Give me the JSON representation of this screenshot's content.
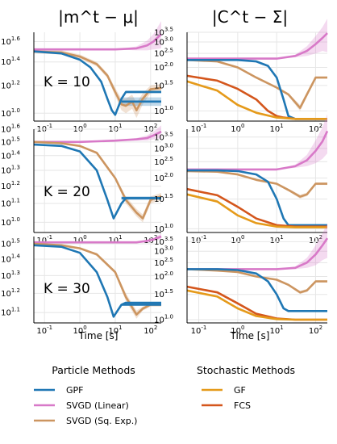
{
  "column_titles": [
    "|m^t − μ|",
    "|C^t − Σ|"
  ],
  "xlabel": "Time [s]",
  "x_ticks": [
    0.1,
    1,
    10,
    100
  ],
  "x_tick_labels": [
    "10^-1",
    "10^0",
    "10^1",
    "10^2"
  ],
  "xlim": [
    0.05,
    200
  ],
  "colors": {
    "GPF": "#1f77b4",
    "SVGD (Linear)": "#d879c8",
    "SVGD (Sq. Exp.)": "#cc9560",
    "GF": "#e59a1a",
    "FCS": "#d4561c"
  },
  "legend": {
    "particle_title": "Particle Methods",
    "particle_items": [
      "GPF",
      "SVGD (Linear)",
      "SVGD (Sq. Exp.)"
    ],
    "stochastic_title": "Stochastic Methods",
    "stochastic_items": [
      "GF",
      "FCS"
    ]
  },
  "chart_data": [
    {
      "type": "line",
      "row": 0,
      "col": 0,
      "annotation": "K = 10",
      "xscale": "log",
      "yscale": "log",
      "ylim": [
        0.95,
        1.7
      ],
      "yticks": [
        {
          "v": 1.0,
          "base": "10",
          "exp": "1.0"
        },
        {
          "v": 1.2,
          "base": "10",
          "exp": "1.2"
        },
        {
          "v": 1.4,
          "base": "10",
          "exp": "1.4"
        },
        {
          "v": 1.6,
          "base": "10",
          "exp": "1.6"
        }
      ],
      "series": [
        {
          "name": "SVGD (Linear)",
          "x": [
            0.05,
            1,
            10,
            40,
            80,
            120,
            200
          ],
          "y": [
            1.52,
            1.52,
            1.52,
            1.53,
            1.56,
            1.6,
            1.68
          ],
          "band": [
            0.0,
            0.0,
            0.0,
            0.02,
            0.05,
            0.08,
            0.15
          ]
        },
        {
          "name": "SVGD (Sq. Exp.)",
          "x": [
            0.05,
            0.3,
            1,
            3,
            6,
            10,
            15,
            20,
            30,
            40,
            60,
            100,
            200
          ],
          "y": [
            1.5,
            1.49,
            1.45,
            1.38,
            1.28,
            1.15,
            1.06,
            1.05,
            1.08,
            1.02,
            1.1,
            1.17,
            1.18
          ],
          "band": [
            0.02,
            0.02,
            0.02,
            0.02,
            0.02,
            0.03,
            0.04,
            0.05,
            0.05,
            0.05,
            0.04,
            0.03,
            0.03
          ]
        },
        {
          "name": "GPF",
          "x": [
            0.05,
            0.3,
            1,
            2,
            4,
            6,
            8,
            10,
            15,
            20,
            50,
            200
          ],
          "y": [
            1.5,
            1.48,
            1.42,
            1.35,
            1.23,
            1.1,
            1.02,
            0.99,
            1.1,
            1.15,
            1.15,
            1.15
          ],
          "band": [
            0.0,
            0.0,
            0.0,
            0.0,
            0.0,
            0.0,
            0.0,
            0.0,
            0.01,
            0.01,
            0.01,
            0.01
          ]
        },
        {
          "name": "GPF (flat)",
          "x": [
            15,
            200
          ],
          "y": [
            1.08,
            1.08
          ],
          "band": [
            0.03,
            0.03
          ]
        }
      ]
    },
    {
      "type": "line",
      "row": 0,
      "col": 1,
      "xscale": "log",
      "yscale": "log",
      "ylim": [
        0.85,
        3.5
      ],
      "yticks": [
        {
          "v": 1.0,
          "base": "10",
          "exp": "1.0"
        },
        {
          "v": 1.5,
          "base": "10",
          "exp": "1.5"
        },
        {
          "v": 2.0,
          "base": "10",
          "exp": "2.0"
        },
        {
          "v": 2.5,
          "base": "10",
          "exp": "2.5"
        },
        {
          "v": 3.0,
          "base": "10",
          "exp": "3.0"
        },
        {
          "v": 3.5,
          "base": "10",
          "exp": "3.5"
        }
      ],
      "series": [
        {
          "name": "SVGD (Linear)",
          "x": [
            0.05,
            1,
            10,
            30,
            60,
            100,
            150,
            200
          ],
          "y": [
            2.3,
            2.3,
            2.3,
            2.4,
            2.6,
            2.9,
            3.2,
            3.45
          ],
          "band": [
            0.0,
            0.0,
            0.0,
            0.05,
            0.2,
            0.4,
            0.6,
            0.9
          ]
        },
        {
          "name": "SVGD (Sq. Exp.)",
          "x": [
            0.05,
            0.3,
            1,
            3,
            10,
            20,
            40,
            60,
            100,
            200
          ],
          "y": [
            2.25,
            2.2,
            2.0,
            1.7,
            1.45,
            1.3,
            1.05,
            1.3,
            1.7,
            1.7
          ],
          "band": [
            0.0,
            0.0,
            0.0,
            0.02,
            0.02,
            0.03,
            0.05,
            0.05,
            0.03,
            0.03
          ]
        },
        {
          "name": "GPF",
          "x": [
            0.05,
            0.3,
            1,
            3,
            6,
            10,
            15,
            20,
            30,
            200
          ],
          "y": [
            2.25,
            2.25,
            2.25,
            2.2,
            2.05,
            1.7,
            1.2,
            0.92,
            0.88,
            0.88
          ],
          "band": [
            0,
            0,
            0,
            0,
            0,
            0,
            0,
            0,
            0,
            0
          ]
        },
        {
          "name": "FCS",
          "x": [
            0.05,
            0.3,
            1,
            3,
            6,
            10,
            15,
            30,
            200
          ],
          "y": [
            1.75,
            1.62,
            1.42,
            1.2,
            1.0,
            0.92,
            0.9,
            0.88,
            0.88
          ],
          "band": [
            0,
            0,
            0,
            0,
            0,
            0,
            0,
            0,
            0
          ]
        },
        {
          "name": "GF",
          "x": [
            0.05,
            0.3,
            1,
            3,
            10,
            30,
            200
          ],
          "y": [
            1.6,
            1.38,
            1.1,
            0.97,
            0.9,
            0.88,
            0.88
          ],
          "band": [
            0,
            0,
            0,
            0,
            0,
            0,
            0
          ]
        }
      ]
    },
    {
      "type": "line",
      "row": 1,
      "col": 0,
      "annotation": "K = 20",
      "xscale": "log",
      "yscale": "log",
      "ylim": [
        0.95,
        1.6
      ],
      "yticks": [
        {
          "v": 1.0,
          "base": "10",
          "exp": "1.0"
        },
        {
          "v": 1.1,
          "base": "10",
          "exp": "1.1"
        },
        {
          "v": 1.2,
          "base": "10",
          "exp": "1.2"
        },
        {
          "v": 1.3,
          "base": "10",
          "exp": "1.3"
        },
        {
          "v": 1.4,
          "base": "10",
          "exp": "1.4"
        },
        {
          "v": 1.5,
          "base": "10",
          "exp": "1.5"
        },
        {
          "v": 1.6,
          "base": "10",
          "exp": "1.6"
        }
      ],
      "series": [
        {
          "name": "SVGD (Linear)",
          "x": [
            0.05,
            1,
            10,
            40,
            80,
            120,
            200
          ],
          "y": [
            1.5,
            1.5,
            1.51,
            1.52,
            1.53,
            1.55,
            1.58
          ],
          "band": [
            0,
            0,
            0,
            0.01,
            0.02,
            0.03,
            0.05
          ]
        },
        {
          "name": "SVGD (Sq. Exp.)",
          "x": [
            0.05,
            0.3,
            1,
            3,
            10,
            20,
            40,
            60,
            100,
            200
          ],
          "y": [
            1.5,
            1.49,
            1.47,
            1.42,
            1.25,
            1.12,
            1.05,
            1.02,
            1.12,
            1.14
          ],
          "band": [
            0,
            0,
            0,
            0.01,
            0.01,
            0.02,
            0.02,
            0.02,
            0.02,
            0.02
          ]
        },
        {
          "name": "GPF",
          "x": [
            0.05,
            0.3,
            1,
            3,
            6,
            9,
            15,
            20,
            200
          ],
          "y": [
            1.48,
            1.47,
            1.43,
            1.3,
            1.12,
            1.02,
            1.1,
            1.13,
            1.13
          ],
          "band": [
            0,
            0,
            0,
            0,
            0,
            0,
            0,
            0,
            0
          ]
        },
        {
          "name": "GPF (flat)",
          "x": [
            15,
            200
          ],
          "y": [
            1.13,
            1.13
          ],
          "band": [
            0.01,
            0.01
          ]
        }
      ]
    },
    {
      "type": "line",
      "row": 1,
      "col": 1,
      "xscale": "log",
      "yscale": "log",
      "ylim": [
        0.95,
        3.9
      ],
      "yticks": [
        {
          "v": 1.0,
          "base": "10",
          "exp": "1.0"
        },
        {
          "v": 1.5,
          "base": "10",
          "exp": "1.5"
        },
        {
          "v": 2.0,
          "base": "10",
          "exp": "2.0"
        },
        {
          "v": 2.5,
          "base": "10",
          "exp": "2.5"
        },
        {
          "v": 3.0,
          "base": "10",
          "exp": "3.0"
        },
        {
          "v": 3.5,
          "base": "10",
          "exp": "3.5"
        }
      ],
      "series": [
        {
          "name": "SVGD (Linear)",
          "x": [
            0.05,
            1,
            10,
            30,
            60,
            100,
            150,
            200
          ],
          "y": [
            2.25,
            2.25,
            2.25,
            2.35,
            2.55,
            2.9,
            3.3,
            3.8
          ],
          "band": [
            0,
            0,
            0,
            0.05,
            0.2,
            0.45,
            0.7,
            1.0
          ]
        },
        {
          "name": "SVGD (Sq. Exp.)",
          "x": [
            0.05,
            0.3,
            1,
            3,
            10,
            20,
            40,
            60,
            100,
            200
          ],
          "y": [
            2.2,
            2.18,
            2.1,
            1.95,
            1.85,
            1.7,
            1.55,
            1.6,
            1.85,
            1.85
          ],
          "band": [
            0,
            0,
            0,
            0,
            0.02,
            0.03,
            0.04,
            0.04,
            0.03,
            0.03
          ]
        },
        {
          "name": "GPF",
          "x": [
            0.05,
            0.3,
            1,
            3,
            6,
            10,
            15,
            20,
            200
          ],
          "y": [
            2.22,
            2.22,
            2.2,
            2.1,
            1.9,
            1.5,
            1.15,
            1.05,
            1.05
          ],
          "band": [
            0,
            0,
            0,
            0,
            0,
            0,
            0,
            0,
            0
          ]
        },
        {
          "name": "FCS",
          "x": [
            0.05,
            0.3,
            1,
            3,
            10,
            30,
            200
          ],
          "y": [
            1.72,
            1.58,
            1.35,
            1.15,
            1.05,
            1.03,
            1.03
          ],
          "band": [
            0,
            0,
            0,
            0,
            0,
            0,
            0
          ]
        },
        {
          "name": "GF",
          "x": [
            0.05,
            0.3,
            1,
            3,
            10,
            30,
            200
          ],
          "y": [
            1.6,
            1.45,
            1.2,
            1.08,
            1.03,
            1.02,
            1.02
          ],
          "band": [
            0,
            0,
            0,
            0,
            0,
            0,
            0
          ]
        }
      ]
    },
    {
      "type": "line",
      "row": 2,
      "col": 0,
      "annotation": "K = 30",
      "xscale": "log",
      "yscale": "log",
      "ylim": [
        1.05,
        1.55
      ],
      "yticks": [
        {
          "v": 1.1,
          "base": "10",
          "exp": "1.1"
        },
        {
          "v": 1.2,
          "base": "10",
          "exp": "1.2"
        },
        {
          "v": 1.3,
          "base": "10",
          "exp": "1.3"
        },
        {
          "v": 1.4,
          "base": "10",
          "exp": "1.4"
        },
        {
          "v": 1.5,
          "base": "10",
          "exp": "1.5"
        }
      ],
      "series": [
        {
          "name": "SVGD (Linear)",
          "x": [
            0.05,
            1,
            10,
            40,
            80,
            120,
            200
          ],
          "y": [
            1.51,
            1.51,
            1.51,
            1.51,
            1.52,
            1.53,
            1.55
          ],
          "band": [
            0,
            0,
            0,
            0,
            0.01,
            0.01,
            0.02
          ]
        },
        {
          "name": "SVGD (Sq. Exp.)",
          "x": [
            0.05,
            0.3,
            1,
            3,
            10,
            20,
            40,
            60,
            100,
            200
          ],
          "y": [
            1.5,
            1.49,
            1.47,
            1.43,
            1.32,
            1.18,
            1.09,
            1.12,
            1.14,
            1.14
          ],
          "band": [
            0,
            0,
            0,
            0.01,
            0.01,
            0.02,
            0.02,
            0.01,
            0.01,
            0.01
          ]
        },
        {
          "name": "GPF",
          "x": [
            0.05,
            0.3,
            1,
            3,
            6,
            9,
            15,
            20,
            200
          ],
          "y": [
            1.49,
            1.48,
            1.44,
            1.32,
            1.18,
            1.08,
            1.14,
            1.15,
            1.15
          ],
          "band": [
            0,
            0,
            0,
            0,
            0,
            0,
            0,
            0,
            0
          ]
        },
        {
          "name": "GPF (flat)",
          "x": [
            15,
            200
          ],
          "y": [
            1.14,
            1.14
          ],
          "band": [
            0.005,
            0.005
          ]
        }
      ]
    },
    {
      "type": "line",
      "row": 2,
      "col": 1,
      "xscale": "log",
      "yscale": "log",
      "ylim": [
        0.95,
        3.8
      ],
      "yticks": [
        {
          "v": 1.0,
          "base": "10",
          "exp": "1.0"
        },
        {
          "v": 1.5,
          "base": "10",
          "exp": "1.5"
        },
        {
          "v": 2.0,
          "base": "10",
          "exp": "2.0"
        },
        {
          "v": 2.5,
          "base": "10",
          "exp": "2.5"
        },
        {
          "v": 3.0,
          "base": "10",
          "exp": "3.0"
        },
        {
          "v": 3.5,
          "base": "10",
          "exp": "3.5"
        }
      ],
      "series": [
        {
          "name": "SVGD (Linear)",
          "x": [
            0.05,
            1,
            10,
            30,
            60,
            100,
            150,
            200
          ],
          "y": [
            2.25,
            2.25,
            2.25,
            2.3,
            2.5,
            2.85,
            3.3,
            3.7
          ],
          "band": [
            0,
            0,
            0,
            0.05,
            0.2,
            0.45,
            0.7,
            1.0
          ]
        },
        {
          "name": "SVGD (Sq. Exp.)",
          "x": [
            0.05,
            0.3,
            1,
            3,
            10,
            20,
            40,
            60,
            100,
            200
          ],
          "y": [
            2.25,
            2.2,
            2.15,
            2.0,
            1.9,
            1.75,
            1.55,
            1.6,
            1.85,
            1.85
          ],
          "band": [
            0,
            0,
            0,
            0,
            0.02,
            0.03,
            0.04,
            0.04,
            0.03,
            0.03
          ]
        },
        {
          "name": "GPF",
          "x": [
            0.05,
            0.3,
            1,
            3,
            6,
            10,
            15,
            20,
            200
          ],
          "y": [
            2.25,
            2.25,
            2.22,
            2.1,
            1.85,
            1.5,
            1.2,
            1.15,
            1.15
          ],
          "band": [
            0,
            0,
            0,
            0,
            0,
            0,
            0,
            0,
            0
          ]
        },
        {
          "name": "FCS",
          "x": [
            0.05,
            0.3,
            1,
            3,
            10,
            30,
            200
          ],
          "y": [
            1.7,
            1.55,
            1.3,
            1.1,
            1.02,
            1.0,
            1.0
          ],
          "band": [
            0,
            0,
            0,
            0,
            0,
            0,
            0
          ]
        },
        {
          "name": "GF",
          "x": [
            0.05,
            0.3,
            1,
            3,
            10,
            30,
            200
          ],
          "y": [
            1.6,
            1.45,
            1.2,
            1.06,
            1.01,
            1.0,
            1.0
          ],
          "band": [
            0,
            0,
            0,
            0,
            0,
            0,
            0
          ]
        }
      ]
    }
  ]
}
